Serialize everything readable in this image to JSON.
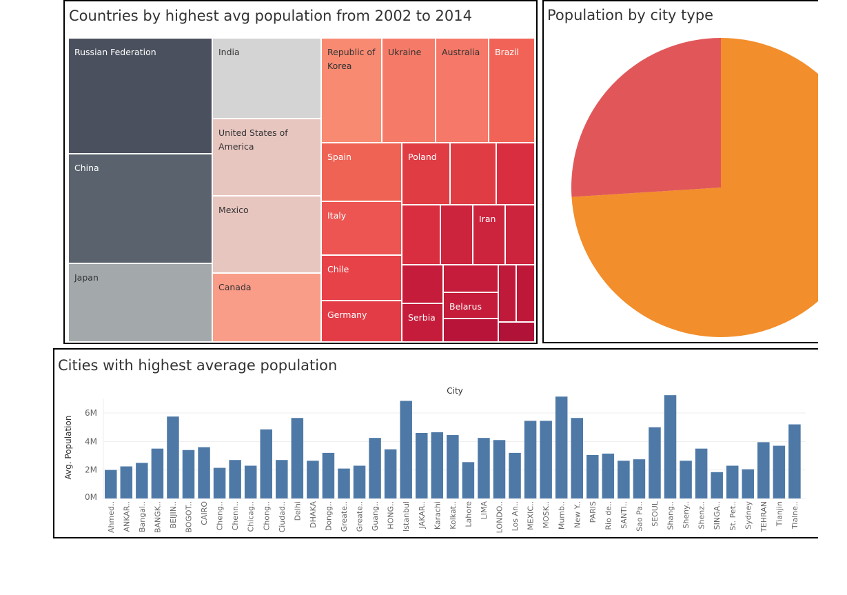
{
  "dashboard": {
    "treemap_title": "Countries by highest avg population from 2002 to 2014",
    "pie_title": "Population by city type",
    "bar_title": "Cities with highest average population"
  },
  "colors": {
    "bar": "#4e79a7",
    "pie_major": "#f28e2b",
    "pie_minor": "#e15759",
    "axis_text": "#666666",
    "grid": "#eeeeee"
  },
  "chart_data": [
    {
      "type": "treemap",
      "title": "Countries by highest avg population from 2002 to 2014",
      "cells": [
        {
          "label": "Russian Federation",
          "color": "#4a505d",
          "dark_text": false
        },
        {
          "label": "China",
          "color": "#5a636d",
          "dark_text": false
        },
        {
          "label": "Japan",
          "color": "#a3a8ab",
          "dark_text": true
        },
        {
          "label": "India",
          "color": "#d4d4d4",
          "dark_text": true
        },
        {
          "label": "United States of America",
          "color": "#e8c6c0",
          "dark_text": true
        },
        {
          "label": "Mexico",
          "color": "#e8c6c0",
          "dark_text": true
        },
        {
          "label": "Canada",
          "color": "#f99c88",
          "dark_text": true
        },
        {
          "label": "Republic of Korea",
          "color": "#f88a72",
          "dark_text": true
        },
        {
          "label": "Ukraine",
          "color": "#f57b68",
          "dark_text": true
        },
        {
          "label": "Australia",
          "color": "#f57868",
          "dark_text": true
        },
        {
          "label": "Brazil",
          "color": "#f06356",
          "dark_text": false
        },
        {
          "label": "Spain",
          "color": "#ef6354",
          "dark_text": false
        },
        {
          "label": "Poland",
          "color": "#e03c44",
          "dark_text": false
        },
        {
          "label": "",
          "color": "#e03c44"
        },
        {
          "label": "",
          "color": "#d82e40"
        },
        {
          "label": "Italy",
          "color": "#ec5552",
          "dark_text": false
        },
        {
          "label": "",
          "color": "#d82e40"
        },
        {
          "label": "",
          "color": "#cd243e"
        },
        {
          "label": "Iran",
          "color": "#cd243e",
          "dark_text": false
        },
        {
          "label": "",
          "color": "#cd243e"
        },
        {
          "label": "Chile",
          "color": "#e64248",
          "dark_text": false
        },
        {
          "label": "Germany",
          "color": "#e43c46",
          "dark_text": false
        },
        {
          "label": "",
          "color": "#c41c3a"
        },
        {
          "label": "",
          "color": "#c41c3a"
        },
        {
          "label": "",
          "color": "#bf1a3a"
        },
        {
          "label": "",
          "color": "#bd1838"
        },
        {
          "label": "Belarus",
          "color": "#c41c3a",
          "dark_text": false
        },
        {
          "label": "Serbia",
          "color": "#c41c3a",
          "dark_text": false
        },
        {
          "label": "",
          "color": "#b8143a"
        },
        {
          "label": "",
          "color": "#b01238"
        }
      ]
    },
    {
      "type": "pie",
      "title": "Population by city type",
      "slices": [
        {
          "value": 74,
          "color": "#f28e2b"
        },
        {
          "value": 26,
          "color": "#e15759"
        }
      ]
    },
    {
      "type": "bar",
      "title": "Cities with highest average population",
      "xlabel": "City",
      "ylabel": "Avg. Population",
      "ylim": [
        0,
        7500000
      ],
      "yticks": [
        {
          "value": 0,
          "label": "0M"
        },
        {
          "value": 2000000,
          "label": "2M"
        },
        {
          "value": 4000000,
          "label": "4M"
        },
        {
          "value": 6000000,
          "label": "6M"
        }
      ],
      "categories": [
        "Ahmed..",
        "ANKAR..",
        "Bangal..",
        "BANGK..",
        "BEIJIN..",
        "BOGOT..",
        "CAIRO",
        "Cheng..",
        "Chenn..",
        "Chicag..",
        "Chong..",
        "Ciudad..",
        "Delhi",
        "DHAKA",
        "Dongg..",
        "Greate..",
        "Greate..",
        "Guang..",
        "HONG..",
        "Istanbul",
        "JAKAR..",
        "Karachi",
        "Kolkat..",
        "Lahore",
        "LIMA",
        "LONDO..",
        "Los An..",
        "MEXIC..",
        "MOSK..",
        "Mumb..",
        "New Y..",
        "PARIS",
        "Rio de..",
        "SANTI..",
        "Sao Pa..",
        "SEOUL",
        "Shang..",
        "Sheny..",
        "Shenz..",
        "SINGA..",
        "St. Pet..",
        "Sydney",
        "TEHRAN",
        "Tianjin",
        "Tialne.."
      ],
      "values": [
        2000000,
        2250000,
        2500000,
        3500000,
        5750000,
        3400000,
        3600000,
        2150000,
        2700000,
        2300000,
        4850000,
        2700000,
        5650000,
        2650000,
        3200000,
        2100000,
        2300000,
        4250000,
        3450000,
        6850000,
        4600000,
        4650000,
        4450000,
        2550000,
        4250000,
        4100000,
        3200000,
        5450000,
        5450000,
        7150000,
        5650000,
        3050000,
        3150000,
        2650000,
        2750000,
        5000000,
        7250000,
        2650000,
        3500000,
        1850000,
        2300000,
        2050000,
        3950000,
        3700000,
        5200000
      ]
    }
  ]
}
